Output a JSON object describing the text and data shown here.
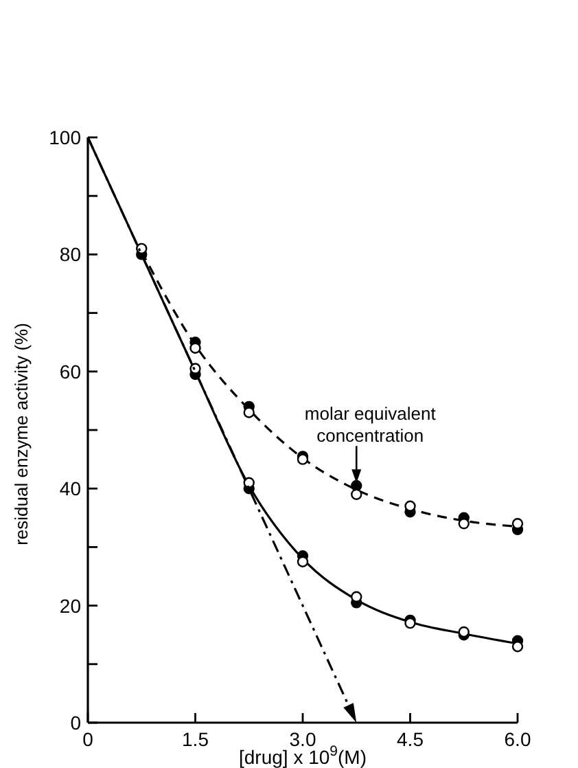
{
  "chart_data": {
    "type": "scatter",
    "xlabel": "[drug] x 10$^{9}$(M)",
    "ylabel": "residual enzyme activity (%)",
    "xlim": [
      0,
      6.0
    ],
    "xticks": [
      0,
      1.5,
      {
        "value": 3.0,
        "label": "3.0"
      },
      4.5,
      {
        "value": 6.0,
        "label": "6.0"
      }
    ],
    "ylim": [
      0,
      100
    ],
    "yticks": [
      0,
      {
        "value": 10,
        "label": null
      },
      20,
      {
        "value": 30,
        "label": null
      },
      40,
      {
        "value": 50,
        "label": null
      },
      60,
      {
        "value": 70,
        "label": null
      },
      80,
      {
        "value": 90,
        "label": null
      },
      100
    ],
    "grid": false,
    "marker": "circle",
    "series": [
      {
        "type": "line",
        "line_style": "solid",
        "marker": "none",
        "color": "#000000",
        "x": [
          0,
          0.75,
          1.5,
          2.25,
          3,
          3.75,
          4.5,
          5.25,
          6
        ],
        "values": [
          100,
          80,
          60,
          40.5,
          28,
          21,
          17.2,
          15.2,
          13.5
        ]
      },
      {
        "type": "line",
        "line_style": "dashed",
        "marker": "none",
        "color": "#000000",
        "x": [
          0.75,
          1.5,
          2.25,
          3,
          3.75,
          4.5,
          5.25,
          6
        ],
        "values": [
          80.5,
          64.5,
          53.5,
          45.2,
          39.8,
          36.5,
          34.5,
          33.5
        ]
      },
      {
        "color": "#000000",
        "x": [
          0.75,
          1.5,
          2.25,
          3,
          3.75,
          4.5,
          5.25,
          6
        ],
        "values": [
          80,
          59.5,
          40,
          28.5,
          20.5,
          17.5,
          15,
          14
        ]
      },
      {
        "color": "#ffffff",
        "x": [
          0.75,
          1.5,
          2.25,
          3,
          3.75,
          4.5,
          5.25,
          6
        ],
        "values": [
          81,
          60.5,
          41,
          27.5,
          21.5,
          17,
          15.5,
          13
        ]
      },
      {
        "color": "#000000",
        "x": [
          1.5,
          2.25,
          3,
          3.75,
          4.5,
          5.25,
          6
        ],
        "values": [
          65,
          54,
          45.5,
          40.5,
          36,
          35,
          33
        ]
      },
      {
        "color": "#ffffff",
        "x": [
          1.5,
          2.25,
          3,
          3.75,
          4.5,
          5.25,
          6
        ],
        "values": [
          64,
          53,
          45,
          39,
          37,
          34,
          34
        ]
      }
    ],
    "annotations": [
      {
        "text": "molar equivalent\nconcentration",
        "x": 3.75,
        "y": 40
      }
    ]
  }
}
